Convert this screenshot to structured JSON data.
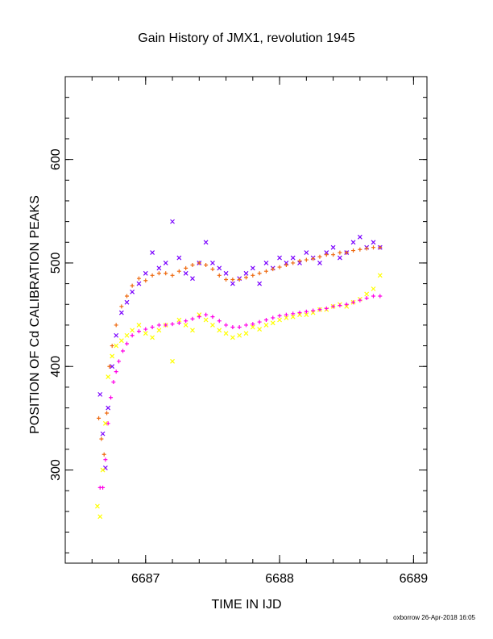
{
  "chart_data": {
    "type": "scatter",
    "title": "Gain History of JMX1, revolution 1945",
    "xlabel": "TIME IN IJD",
    "ylabel": "POSITION OF Cd CALIBRATION PEAKS",
    "footer": "oxborrow 26-Apr-2018 16:05",
    "xlim": [
      6686.4,
      6689.1
    ],
    "ylim": [
      210,
      680
    ],
    "xticks": [
      {
        "value": 6687,
        "label": "6687"
      },
      {
        "value": 6688,
        "label": "6688"
      },
      {
        "value": 6689,
        "label": "6689"
      }
    ],
    "yticks": [
      {
        "value": 300,
        "label": "300"
      },
      {
        "value": 400,
        "label": "400"
      },
      {
        "value": 500,
        "label": "500"
      },
      {
        "value": 600,
        "label": "600"
      }
    ],
    "x_minor_step": 0.2,
    "y_minor_step": 20,
    "series": [
      {
        "marker": "cross",
        "color": "#7a00ff",
        "x": [
          6686.66,
          6686.68,
          6686.7,
          6686.72,
          6686.75,
          6686.78,
          6686.82,
          6686.86,
          6686.9,
          6686.95,
          6687.0,
          6687.05,
          6687.1,
          6687.15,
          6687.2,
          6687.25,
          6687.3,
          6687.35,
          6687.4,
          6687.45,
          6687.5,
          6687.55,
          6687.6,
          6687.65,
          6687.7,
          6687.75,
          6687.8,
          6687.85,
          6687.9,
          6687.95,
          6688.0,
          6688.05,
          6688.1,
          6688.15,
          6688.2,
          6688.25,
          6688.3,
          6688.35,
          6688.4,
          6688.45,
          6688.5,
          6688.55,
          6688.6,
          6688.65,
          6688.7,
          6688.75
        ],
        "y": [
          373,
          335,
          302,
          360,
          400,
          430,
          452,
          462,
          472,
          480,
          490,
          510,
          495,
          500,
          540,
          505,
          490,
          485,
          500,
          520,
          500,
          495,
          490,
          480,
          485,
          490,
          495,
          480,
          500,
          495,
          505,
          500,
          505,
          500,
          510,
          505,
          500,
          510,
          515,
          505,
          510,
          520,
          525,
          515,
          520,
          515
        ]
      },
      {
        "marker": "plus",
        "color": "#ee6a10",
        "x": [
          6686.65,
          6686.67,
          6686.69,
          6686.71,
          6686.73,
          6686.75,
          6686.78,
          6686.82,
          6686.86,
          6686.9,
          6686.95,
          6687.0,
          6687.05,
          6687.1,
          6687.15,
          6687.2,
          6687.25,
          6687.3,
          6687.35,
          6687.4,
          6687.45,
          6687.5,
          6687.55,
          6687.6,
          6687.65,
          6687.7,
          6687.75,
          6687.8,
          6687.85,
          6687.9,
          6687.95,
          6688.0,
          6688.05,
          6688.1,
          6688.15,
          6688.2,
          6688.25,
          6688.3,
          6688.35,
          6688.4,
          6688.45,
          6688.5,
          6688.55,
          6688.6,
          6688.65,
          6688.7,
          6688.75
        ],
        "y": [
          350,
          330,
          315,
          355,
          400,
          420,
          440,
          458,
          468,
          478,
          485,
          483,
          488,
          490,
          490,
          488,
          492,
          495,
          498,
          500,
          498,
          494,
          488,
          484,
          484,
          484,
          486,
          488,
          490,
          492,
          494,
          496,
          498,
          500,
          502,
          503,
          504,
          506,
          508,
          508,
          510,
          510,
          512,
          513,
          514,
          515,
          515
        ]
      },
      {
        "marker": "cross",
        "color": "#ffff00",
        "x": [
          6686.64,
          6686.66,
          6686.68,
          6686.7,
          6686.72,
          6686.75,
          6686.78,
          6686.82,
          6686.86,
          6686.9,
          6686.95,
          6687.0,
          6687.05,
          6687.1,
          6687.15,
          6687.2,
          6687.25,
          6687.3,
          6687.35,
          6687.4,
          6687.45,
          6687.5,
          6687.55,
          6687.6,
          6687.65,
          6687.7,
          6687.75,
          6687.8,
          6687.85,
          6687.9,
          6687.95,
          6688.0,
          6688.05,
          6688.1,
          6688.15,
          6688.2,
          6688.25,
          6688.3,
          6688.35,
          6688.4,
          6688.45,
          6688.5,
          6688.55,
          6688.6,
          6688.65,
          6688.7,
          6688.75
        ],
        "y": [
          265,
          255,
          300,
          345,
          390,
          410,
          420,
          425,
          430,
          435,
          440,
          432,
          428,
          435,
          440,
          405,
          445,
          440,
          435,
          450,
          445,
          440,
          435,
          432,
          428,
          430,
          432,
          438,
          436,
          440,
          442,
          445,
          447,
          448,
          450,
          450,
          452,
          455,
          455,
          458,
          460,
          458,
          462,
          465,
          470,
          475,
          488
        ]
      },
      {
        "marker": "plus",
        "color": "#ff00e6",
        "x": [
          6686.66,
          6686.68,
          6686.7,
          6686.72,
          6686.74,
          6686.76,
          6686.78,
          6686.8,
          6686.83,
          6686.86,
          6686.9,
          6686.95,
          6687.0,
          6687.05,
          6687.1,
          6687.15,
          6687.2,
          6687.25,
          6687.3,
          6687.35,
          6687.4,
          6687.45,
          6687.5,
          6687.55,
          6687.6,
          6687.65,
          6687.7,
          6687.75,
          6687.8,
          6687.85,
          6687.9,
          6687.95,
          6688.0,
          6688.05,
          6688.1,
          6688.15,
          6688.2,
          6688.25,
          6688.3,
          6688.35,
          6688.4,
          6688.45,
          6688.5,
          6688.55,
          6688.6,
          6688.65,
          6688.7,
          6688.75
        ],
        "y": [
          283,
          283,
          310,
          345,
          370,
          385,
          395,
          405,
          415,
          422,
          430,
          434,
          436,
          438,
          440,
          440,
          441,
          442,
          444,
          446,
          448,
          450,
          448,
          444,
          440,
          438,
          438,
          440,
          441,
          443,
          445,
          447,
          449,
          450,
          451,
          452,
          453,
          454,
          455,
          456,
          458,
          459,
          460,
          462,
          464,
          466,
          468,
          468
        ]
      }
    ]
  }
}
